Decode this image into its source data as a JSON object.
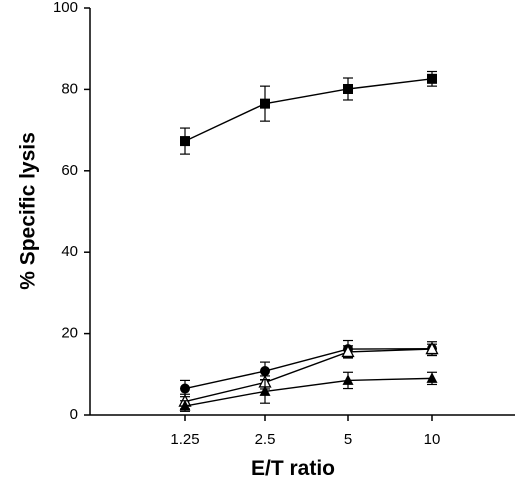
{
  "chart_data": {
    "type": "line",
    "title": "",
    "xlabel": "E/T ratio",
    "ylabel": "% Specific lysis",
    "x_categories": [
      "1.25",
      "2.5",
      "5",
      "10"
    ],
    "ylim": [
      0,
      100
    ],
    "yticks": [
      0,
      20,
      40,
      60,
      80,
      100
    ],
    "grid": false,
    "legend": "none",
    "series": [
      {
        "marker": "filled-square",
        "values": [
          67.3,
          76.5,
          80.1,
          82.6
        ],
        "errors": [
          3.2,
          4.3,
          2.7,
          1.8
        ]
      },
      {
        "marker": "filled-circle",
        "values": [
          6.5,
          10.8,
          16.2,
          16.3
        ],
        "errors": [
          2.0,
          2.2,
          2.1,
          1.7
        ]
      },
      {
        "marker": "open-triangle",
        "values": [
          3.3,
          8.0,
          15.5,
          16.2
        ],
        "errors": [
          1.8,
          1.6,
          1.5,
          1.2
        ]
      },
      {
        "marker": "filled-triangle",
        "values": [
          2.2,
          5.8,
          8.5,
          9.0
        ],
        "errors": [
          1.3,
          2.9,
          2.0,
          1.5
        ]
      }
    ]
  }
}
